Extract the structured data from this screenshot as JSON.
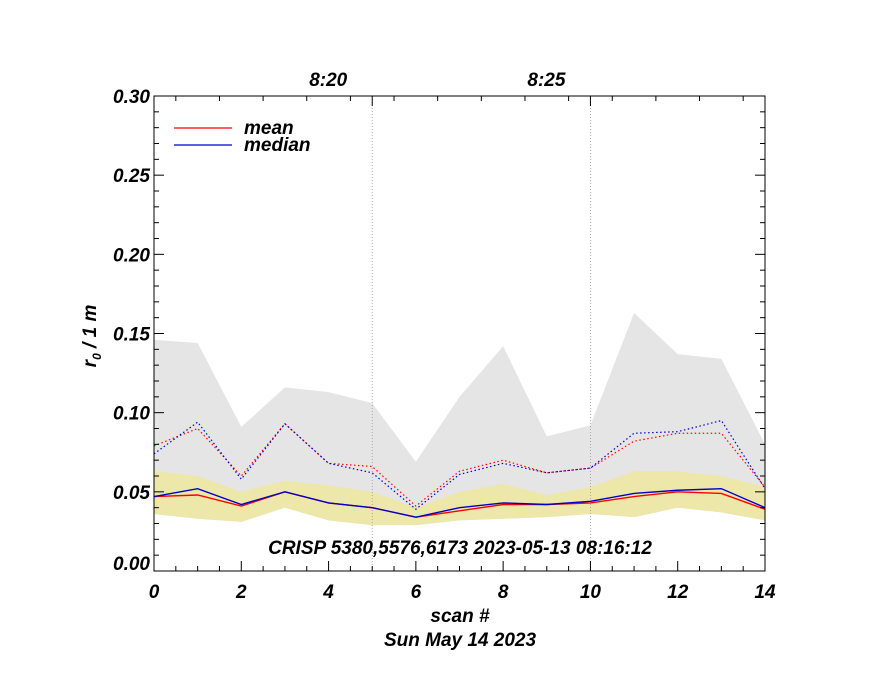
{
  "chart_data": {
    "type": "line",
    "title": "",
    "xlabel": "scan #",
    "ylabel": "r₀ / 1 m",
    "date_label": "Sun May 14 2023",
    "annotation": "CRISP 5380,5576,6173 2023-05-13 08:16:12",
    "xlim": [
      0,
      14
    ],
    "ylim": [
      0,
      0.3
    ],
    "x_ticks": [
      0,
      2,
      4,
      6,
      8,
      10,
      12,
      14
    ],
    "x_tick_labels": [
      "0",
      "2",
      "4",
      "6",
      "8",
      "10",
      "12",
      "14"
    ],
    "y_ticks": [
      0.0,
      0.05,
      0.1,
      0.15,
      0.2,
      0.25,
      0.3
    ],
    "y_tick_labels": [
      "0.00",
      "0.05",
      "0.10",
      "0.15",
      "0.20",
      "0.25",
      "0.30"
    ],
    "top_time_markers": [
      {
        "x": 5,
        "label": "8:20"
      },
      {
        "x": 10,
        "label": "8:25"
      }
    ],
    "x": [
      0,
      1,
      2,
      3,
      4,
      5,
      6,
      7,
      8,
      9,
      10,
      11,
      12,
      13,
      14
    ],
    "bands": [
      {
        "name": "max-range",
        "color": "#e5e5e5",
        "upper": [
          0.146,
          0.144,
          0.091,
          0.116,
          0.113,
          0.106,
          0.069,
          0.11,
          0.142,
          0.085,
          0.092,
          0.163,
          0.137,
          0.134,
          0.08
        ],
        "lower": [
          0.036,
          0.033,
          0.031,
          0.04,
          0.032,
          0.029,
          0.029,
          0.032,
          0.033,
          0.034,
          0.036,
          0.034,
          0.04,
          0.037,
          0.032
        ]
      },
      {
        "name": "quartile-range",
        "color": "#ede7a9",
        "upper": [
          0.063,
          0.06,
          0.05,
          0.057,
          0.054,
          0.05,
          0.04,
          0.05,
          0.055,
          0.048,
          0.053,
          0.063,
          0.063,
          0.06,
          0.053
        ],
        "lower": [
          0.036,
          0.033,
          0.031,
          0.04,
          0.032,
          0.029,
          0.029,
          0.032,
          0.033,
          0.034,
          0.036,
          0.034,
          0.04,
          0.037,
          0.032
        ]
      }
    ],
    "series": [
      {
        "name": "mean",
        "color": "#ff0000",
        "style": "solid",
        "values": [
          0.047,
          0.048,
          0.041,
          0.05,
          0.043,
          0.04,
          0.034,
          0.038,
          0.042,
          0.042,
          0.043,
          0.047,
          0.05,
          0.049,
          0.039
        ]
      },
      {
        "name": "median",
        "color": "#0000cc",
        "style": "solid",
        "values": [
          0.047,
          0.052,
          0.042,
          0.05,
          0.043,
          0.04,
          0.034,
          0.04,
          0.043,
          0.042,
          0.044,
          0.049,
          0.051,
          0.052,
          0.04
        ]
      },
      {
        "name": "mean-upper",
        "color": "#ff0000",
        "style": "dotted",
        "values": [
          0.079,
          0.09,
          0.06,
          0.093,
          0.068,
          0.066,
          0.041,
          0.063,
          0.07,
          0.062,
          0.065,
          0.082,
          0.087,
          0.087,
          0.053
        ]
      },
      {
        "name": "median-upper",
        "color": "#0000cc",
        "style": "dotted",
        "values": [
          0.074,
          0.094,
          0.058,
          0.093,
          0.068,
          0.062,
          0.039,
          0.061,
          0.068,
          0.062,
          0.065,
          0.087,
          0.088,
          0.095,
          0.052
        ]
      }
    ],
    "legend": {
      "position": "top-left",
      "entries": [
        {
          "label": "mean",
          "color": "#ff0000"
        },
        {
          "label": "median",
          "color": "#0000cc"
        }
      ]
    }
  }
}
